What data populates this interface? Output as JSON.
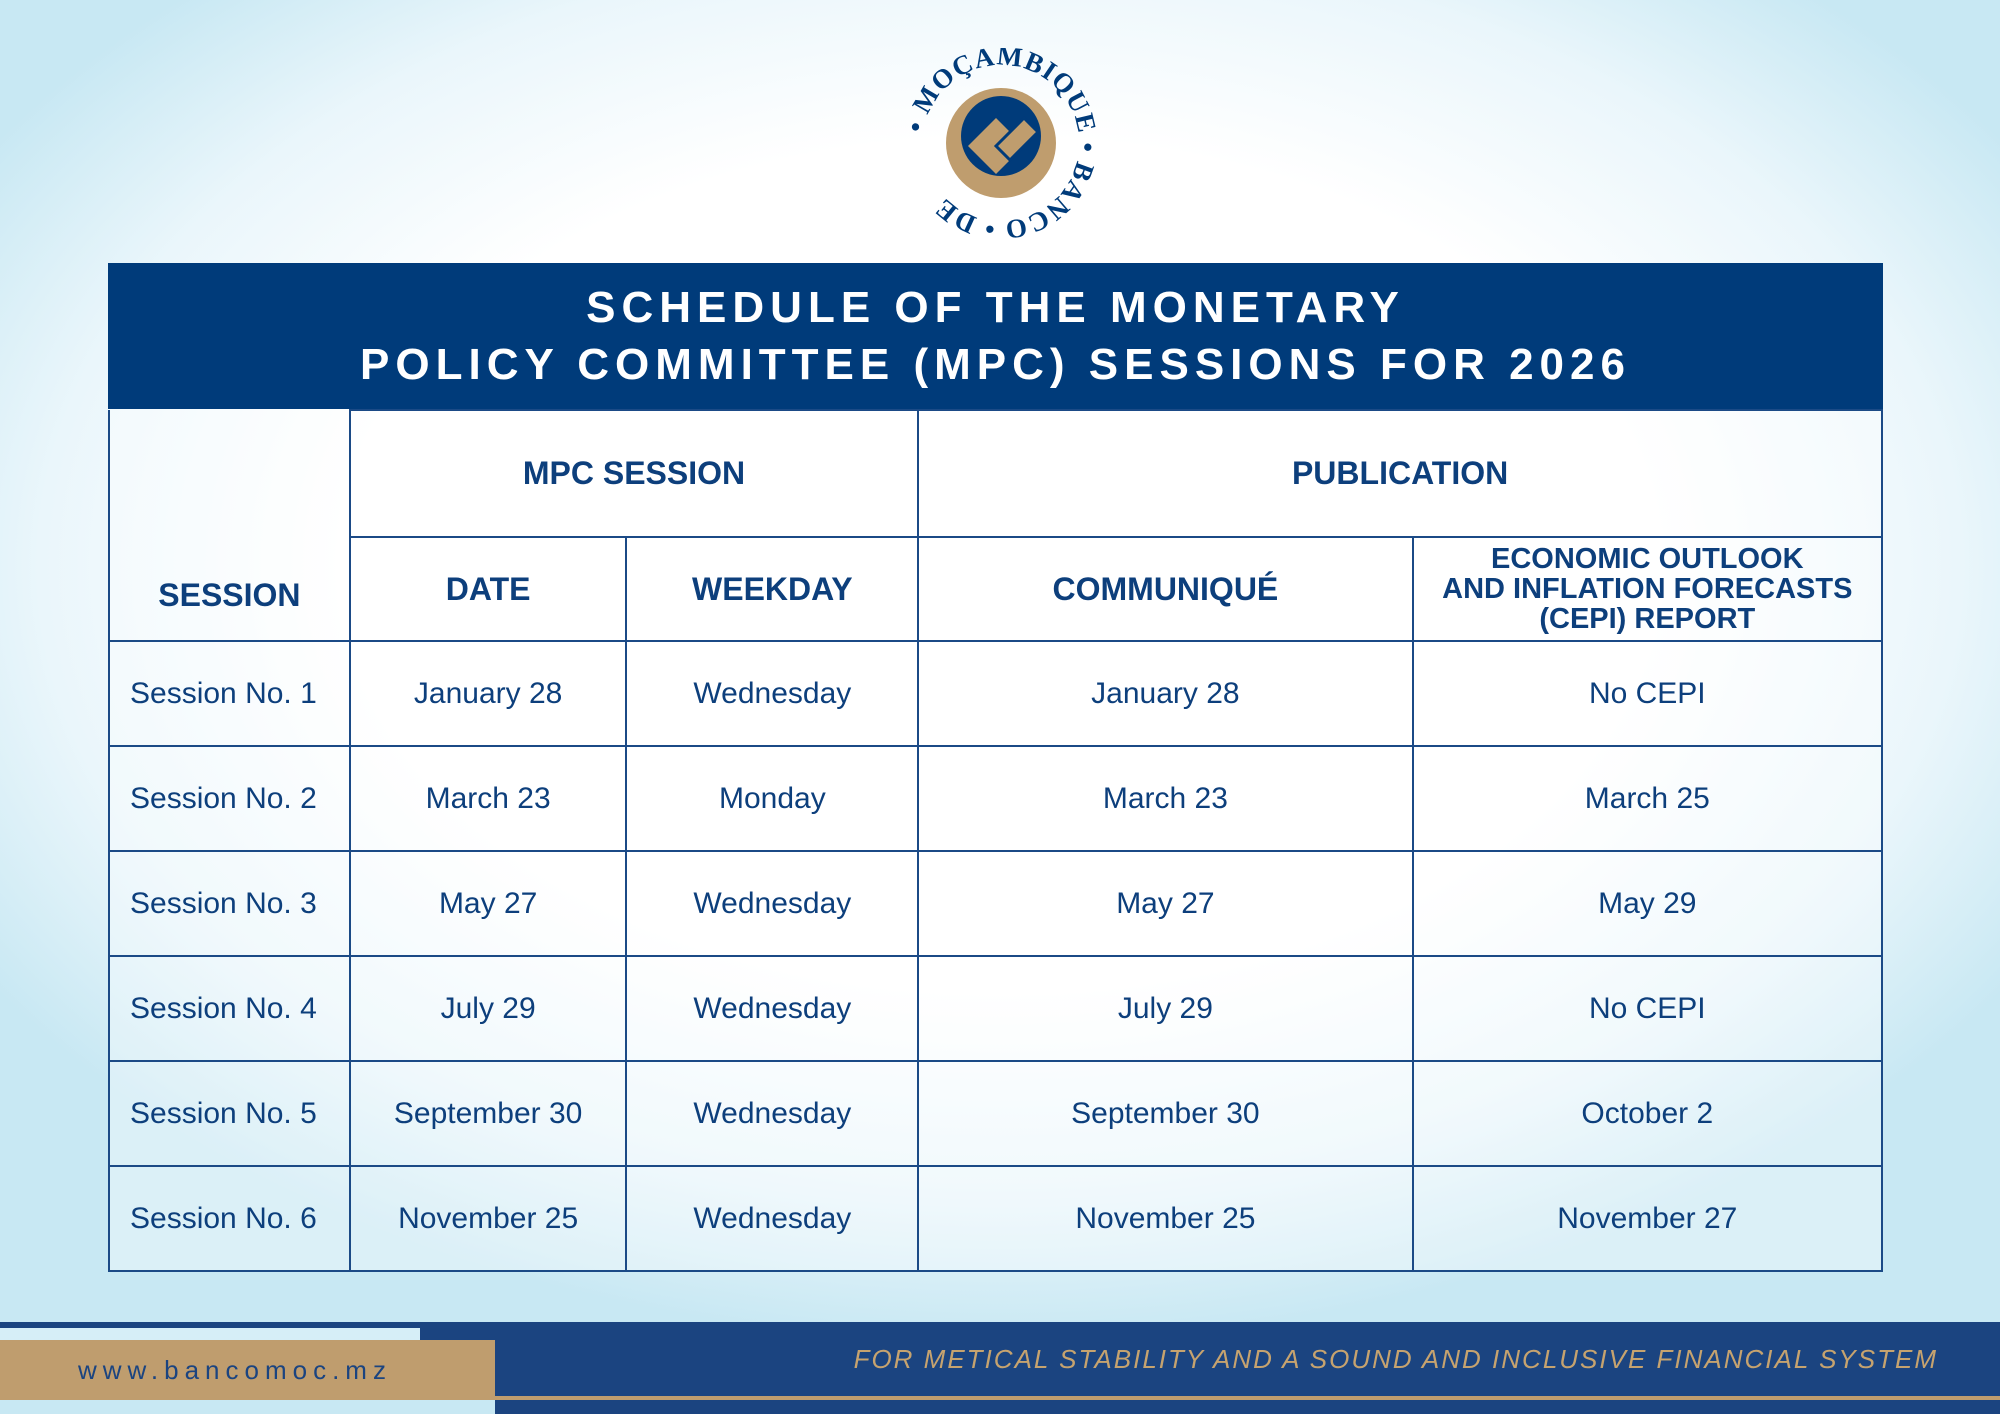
{
  "logo": {
    "text": "BANCO DE MOÇAMBIQUE",
    "colors": {
      "blue": "#003b7a",
      "gold": "#bf9d6e"
    }
  },
  "title": {
    "line1": "SCHEDULE OF THE MONETARY",
    "line2": "POLICY COMMITTEE (MPC) SESSIONS FOR 2026"
  },
  "headers": {
    "session": "SESSION",
    "mpc_session": "MPC SESSION",
    "publication": "PUBLICATION",
    "date": "DATE",
    "weekday": "WEEKDAY",
    "communique": "COMMUNIQUÉ",
    "cepi_line1": "ECONOMIC OUTLOOK",
    "cepi_line2": "AND INFLATION FORECASTS",
    "cepi_line3": "(CEPI) REPORT"
  },
  "rows": [
    {
      "session": "Session No. 1",
      "date": "January 28",
      "weekday": "Wednesday",
      "communique": "January 28",
      "cepi": "No CEPI"
    },
    {
      "session": "Session No. 2",
      "date": "March 23",
      "weekday": "Monday",
      "communique": "March 23",
      "cepi": "March 25"
    },
    {
      "session": "Session No. 3",
      "date": "May 27",
      "weekday": "Wednesday",
      "communique": "May 27",
      "cepi": "May 29"
    },
    {
      "session": "Session No. 4",
      "date": "July 29",
      "weekday": "Wednesday",
      "communique": "July 29",
      "cepi": "No CEPI"
    },
    {
      "session": "Session No. 5",
      "date": "September 30",
      "weekday": "Wednesday",
      "communique": "September 30",
      "cepi": "October 2"
    },
    {
      "session": "Session No. 6",
      "date": "November 25",
      "weekday": "Wednesday",
      "communique": "November 25",
      "cepi": "November 27"
    }
  ],
  "footer": {
    "website": "www.bancomoc.mz",
    "slogan": "FOR METICAL STABILITY AND A SOUND AND INCLUSIVE FINANCIAL SYSTEM"
  }
}
